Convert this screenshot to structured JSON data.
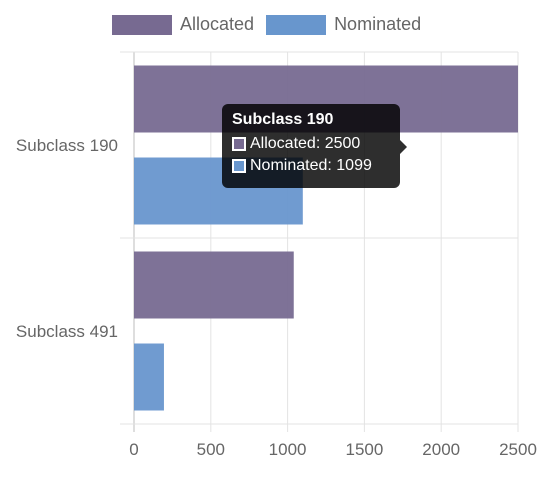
{
  "chart_data": {
    "type": "bar",
    "orientation": "horizontal",
    "categories": [
      "Subclass 190",
      "Subclass 491"
    ],
    "series": [
      {
        "name": "Allocated",
        "values": [
          2500,
          1040
        ],
        "color": "#776a91"
      },
      {
        "name": "Nominated",
        "values": [
          1099,
          195
        ],
        "color": "#6896cd"
      }
    ],
    "xlim": [
      0,
      2500
    ],
    "x_ticks": [
      0,
      500,
      1000,
      1500,
      2000,
      2500
    ],
    "grid": true,
    "legend": "top"
  },
  "tooltip": {
    "title": "Subclass 190",
    "rows": [
      {
        "label": "Allocated: 2500",
        "color": "#776a91"
      },
      {
        "label": "Nominated: 1099",
        "color": "#6896cd"
      }
    ]
  }
}
